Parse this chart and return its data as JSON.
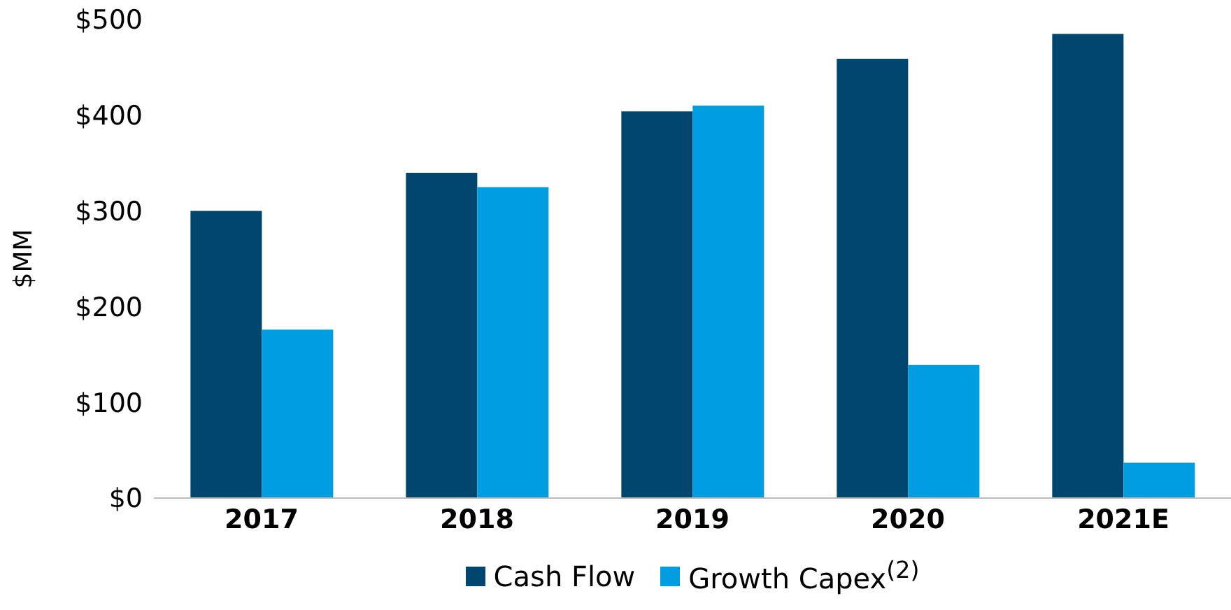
{
  "chart_data": {
    "type": "bar",
    "ylabel": "$MM",
    "categories": [
      "2017",
      "2018",
      "2019",
      "2020",
      "2021E"
    ],
    "series": [
      {
        "name": "Cash Flow",
        "color": "#00466e",
        "values": [
          300,
          340,
          404,
          459,
          485
        ]
      },
      {
        "name": "Growth Capex$^{(2)}$",
        "color": "#009ee0",
        "values": [
          176,
          325,
          410,
          139,
          37
        ]
      }
    ],
    "ylim": [
      0,
      500
    ],
    "yticks": [
      {
        "value": 0,
        "label": "$0"
      },
      {
        "value": 100,
        "label": "$100"
      },
      {
        "value": 200,
        "label": "$200"
      },
      {
        "value": 300,
        "label": "$300"
      },
      {
        "value": 400,
        "label": "$400"
      },
      {
        "value": 500,
        "label": "$500"
      }
    ],
    "grid": false,
    "legend": "bottom"
  }
}
